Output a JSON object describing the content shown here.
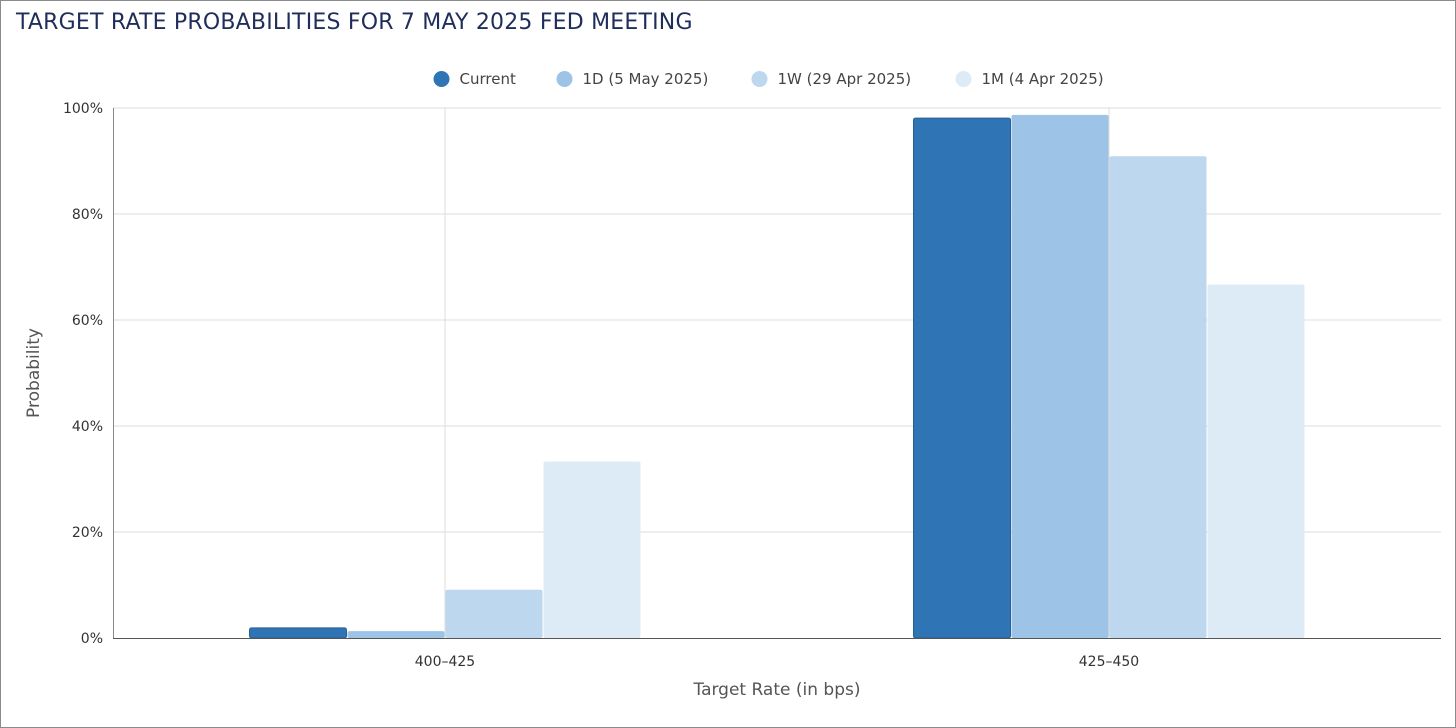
{
  "chart_data": {
    "type": "bar",
    "title": "TARGET RATE PROBABILITIES FOR 7 MAY 2025 FED MEETING",
    "xlabel": "Target Rate (in bps)",
    "ylabel": "Probability",
    "categories": [
      "400–425",
      "425–450"
    ],
    "y_ticks": [
      "0%",
      "20%",
      "40%",
      "60%",
      "80%",
      "100%"
    ],
    "ylim": [
      0,
      100
    ],
    "grid": true,
    "legend_position": "top-center",
    "series": [
      {
        "name": "Current",
        "color": "#2f75b5",
        "values": [
          1.9,
          98.1
        ]
      },
      {
        "name": "1D (5 May 2025)",
        "color": "#9dc3e6",
        "values": [
          1.3,
          98.7
        ]
      },
      {
        "name": "1W (29 Apr 2025)",
        "color": "#bdd7ee",
        "values": [
          9.1,
          90.9
        ]
      },
      {
        "name": "1M (4 Apr 2025)",
        "color": "#ddebf7",
        "values": [
          33.3,
          66.7
        ]
      }
    ]
  }
}
